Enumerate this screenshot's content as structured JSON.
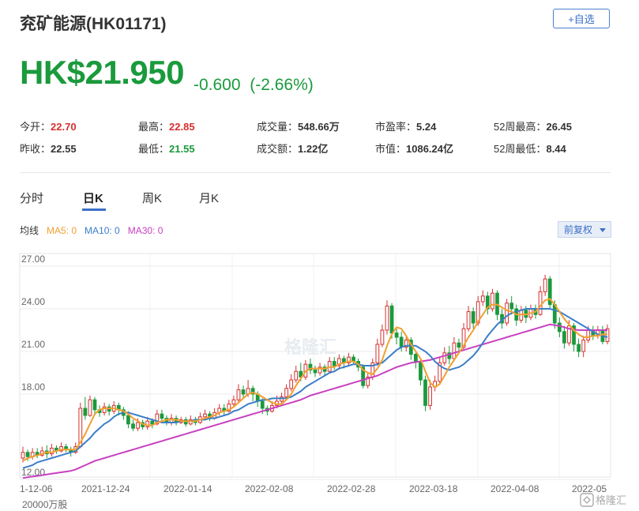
{
  "header": {
    "title": "兖矿能源(HK01171)",
    "watch_label": "+自选",
    "price": "HK$21.950",
    "change": "-0.600",
    "change_pct": "(-2.66%)"
  },
  "stats": {
    "open_label": "今开：",
    "open": "22.70",
    "high_label": "最高：",
    "high": "22.85",
    "volume_label": "成交量：",
    "volume": "548.66万",
    "pe_label": "市盈率：",
    "pe": "5.24",
    "w52_high_label": "52周最高：",
    "w52_high": "26.45",
    "prev_close_label": "昨收：",
    "prev_close": "22.55",
    "low_label": "最低：",
    "low": "21.55",
    "turnover_label": "成交额：",
    "turnover": "1.22亿",
    "mcap_label": "市值：",
    "mcap": "1086.24亿",
    "w52_low_label": "52周最低：",
    "w52_low": "8.44"
  },
  "tabs": [
    "分时",
    "日K",
    "周K",
    "月K"
  ],
  "ma_legend": {
    "label": "均线",
    "ma5": "MA5: 0",
    "ma10": "MA10: 0",
    "ma30": "MA30: 0"
  },
  "adjust_label": "前复权",
  "volume_label": "20000万股",
  "watermark": "格隆汇",
  "colors": {
    "up": "#d63030",
    "down": "#1a9a3c",
    "ma5": "#f0a030",
    "ma10": "#3a7ec8",
    "ma30": "#c840c0"
  },
  "chart_data": {
    "type": "candlestick",
    "ylim": [
      12,
      27
    ],
    "yticks": [
      "27.00",
      "24.00",
      "21.00",
      "18.00",
      "12.00"
    ],
    "xticks": [
      "1-12-06",
      "2021-12-24",
      "2022-01-14",
      "2022-02-08",
      "2022-02-28",
      "2022-03-18",
      "2022-04-08",
      "2022-05"
    ],
    "grid": true,
    "candles": [
      [
        13.5,
        13.9,
        14.3,
        13.2
      ],
      [
        13.9,
        13.6,
        14.1,
        13.3
      ],
      [
        13.6,
        13.9,
        14.2,
        13.4
      ],
      [
        13.9,
        13.7,
        14.2,
        13.5
      ],
      [
        13.7,
        14.0,
        14.3,
        13.6
      ],
      [
        14.0,
        13.8,
        14.4,
        13.5
      ],
      [
        13.8,
        14.2,
        14.5,
        13.6
      ],
      [
        14.2,
        14.0,
        14.4,
        13.8
      ],
      [
        14.0,
        14.3,
        14.6,
        13.9
      ],
      [
        14.3,
        14.1,
        14.5,
        13.9
      ],
      [
        14.1,
        13.9,
        14.3,
        13.6
      ],
      [
        13.9,
        14.3,
        14.6,
        13.8
      ],
      [
        14.3,
        17.0,
        17.4,
        14.2
      ],
      [
        17.0,
        16.5,
        17.8,
        16.2
      ],
      [
        16.5,
        17.6,
        17.9,
        16.4
      ],
      [
        17.6,
        16.9,
        17.8,
        16.5
      ],
      [
        16.9,
        16.7,
        17.2,
        16.4
      ],
      [
        16.7,
        17.1,
        17.4,
        16.5
      ],
      [
        17.1,
        16.8,
        17.3,
        16.5
      ],
      [
        16.8,
        17.2,
        17.5,
        16.6
      ],
      [
        17.2,
        16.9,
        17.4,
        16.5
      ],
      [
        16.9,
        16.5,
        17.1,
        16.2
      ],
      [
        16.5,
        15.9,
        16.8,
        15.6
      ],
      [
        15.9,
        15.6,
        16.2,
        15.4
      ],
      [
        15.6,
        16.0,
        16.3,
        15.4
      ],
      [
        16.0,
        15.7,
        16.2,
        15.5
      ],
      [
        15.7,
        16.1,
        16.4,
        15.5
      ],
      [
        16.1,
        15.9,
        16.3,
        15.6
      ],
      [
        15.9,
        16.6,
        16.9,
        15.8
      ],
      [
        16.6,
        16.3,
        16.9,
        16.0
      ],
      [
        16.3,
        16.0,
        16.5,
        15.8
      ],
      [
        16.0,
        16.3,
        16.6,
        15.8
      ],
      [
        16.3,
        16.0,
        16.5,
        15.8
      ],
      [
        16.0,
        16.2,
        16.4,
        15.9
      ],
      [
        16.2,
        15.9,
        16.4,
        15.7
      ],
      [
        15.9,
        16.2,
        16.5,
        15.8
      ],
      [
        16.2,
        16.0,
        16.4,
        15.8
      ],
      [
        16.0,
        16.4,
        16.7,
        15.9
      ],
      [
        16.4,
        16.6,
        16.9,
        16.2
      ],
      [
        16.6,
        16.3,
        16.8,
        16.1
      ],
      [
        16.3,
        16.7,
        17.0,
        16.2
      ],
      [
        16.7,
        17.0,
        17.3,
        16.5
      ],
      [
        17.0,
        16.8,
        17.3,
        16.5
      ],
      [
        16.8,
        17.3,
        17.6,
        16.7
      ],
      [
        17.3,
        17.6,
        17.9,
        17.1
      ],
      [
        17.6,
        18.3,
        18.7,
        17.4
      ],
      [
        18.3,
        18.0,
        18.6,
        17.7
      ],
      [
        18.0,
        18.4,
        19.0,
        17.8
      ],
      [
        18.4,
        18.0,
        18.6,
        17.5
      ],
      [
        18.0,
        17.5,
        18.2,
        17.1
      ],
      [
        17.5,
        17.0,
        17.7,
        16.6
      ],
      [
        17.0,
        16.8,
        17.2,
        16.5
      ],
      [
        16.8,
        17.2,
        17.5,
        16.7
      ],
      [
        17.2,
        17.5,
        17.9,
        17.0
      ],
      [
        17.5,
        17.8,
        18.1,
        17.3
      ],
      [
        17.8,
        18.4,
        18.7,
        17.6
      ],
      [
        18.4,
        19.0,
        19.4,
        18.2
      ],
      [
        19.0,
        19.6,
        20.0,
        18.8
      ],
      [
        19.6,
        19.2,
        20.2,
        18.9
      ],
      [
        19.2,
        20.1,
        20.4,
        19.0
      ],
      [
        20.1,
        19.7,
        20.5,
        19.4
      ],
      [
        19.7,
        19.5,
        20.0,
        19.2
      ],
      [
        19.5,
        19.9,
        20.2,
        19.3
      ],
      [
        19.9,
        19.6,
        20.1,
        19.3
      ],
      [
        19.6,
        20.3,
        20.6,
        19.5
      ],
      [
        20.3,
        20.0,
        20.6,
        19.7
      ],
      [
        20.0,
        20.5,
        20.8,
        19.8
      ],
      [
        20.5,
        20.2,
        20.7,
        19.8
      ],
      [
        20.2,
        20.6,
        20.9,
        20.0
      ],
      [
        20.6,
        20.3,
        20.8,
        20.1
      ],
      [
        20.3,
        19.9,
        20.5,
        19.6
      ],
      [
        19.9,
        18.6,
        20.1,
        18.4
      ],
      [
        18.6,
        19.2,
        19.5,
        18.4
      ],
      [
        19.2,
        20.2,
        20.5,
        19.0
      ],
      [
        20.2,
        21.5,
        21.9,
        20.0
      ],
      [
        21.5,
        22.5,
        22.9,
        21.3
      ],
      [
        22.5,
        24.2,
        24.6,
        22.2
      ],
      [
        24.2,
        22.3,
        24.4,
        21.9
      ],
      [
        22.3,
        22.0,
        22.6,
        21.5
      ],
      [
        22.0,
        21.3,
        22.4,
        21.0
      ],
      [
        21.3,
        21.8,
        22.1,
        21.0
      ],
      [
        21.8,
        20.8,
        22.0,
        20.4
      ],
      [
        20.8,
        20.3,
        21.0,
        19.8
      ],
      [
        20.3,
        19.0,
        20.5,
        18.6
      ],
      [
        19.0,
        17.2,
        19.3,
        16.8
      ],
      [
        17.2,
        18.5,
        19.0,
        16.9
      ],
      [
        18.5,
        18.9,
        19.3,
        18.2
      ],
      [
        18.9,
        20.2,
        20.6,
        18.7
      ],
      [
        20.2,
        20.9,
        21.3,
        20.0
      ],
      [
        20.9,
        20.5,
        21.4,
        20.1
      ],
      [
        20.5,
        21.6,
        22.0,
        20.3
      ],
      [
        21.6,
        21.3,
        21.9,
        20.9
      ],
      [
        21.3,
        22.6,
        23.0,
        21.1
      ],
      [
        22.6,
        23.8,
        24.2,
        22.4
      ],
      [
        23.8,
        23.0,
        24.1,
        22.6
      ],
      [
        23.0,
        24.5,
        24.9,
        22.8
      ],
      [
        24.5,
        24.9,
        25.3,
        24.2
      ],
      [
        24.9,
        24.0,
        25.2,
        23.6
      ],
      [
        24.0,
        25.1,
        25.4,
        23.8
      ],
      [
        25.1,
        23.6,
        25.3,
        23.2
      ],
      [
        23.6,
        23.0,
        24.0,
        22.6
      ],
      [
        23.0,
        24.4,
        24.7,
        22.8
      ],
      [
        24.4,
        24.0,
        24.9,
        23.6
      ],
      [
        24.0,
        23.2,
        24.3,
        22.8
      ],
      [
        23.2,
        23.9,
        24.2,
        23.0
      ],
      [
        23.9,
        23.4,
        24.2,
        23.0
      ],
      [
        23.4,
        24.0,
        24.3,
        23.2
      ],
      [
        24.0,
        23.6,
        24.3,
        23.3
      ],
      [
        23.6,
        25.2,
        25.6,
        23.5
      ],
      [
        25.2,
        26.1,
        26.4,
        24.9
      ],
      [
        26.1,
        24.3,
        26.3,
        24.0
      ],
      [
        24.3,
        23.0,
        24.6,
        22.6
      ],
      [
        23.0,
        22.4,
        23.4,
        22.0
      ],
      [
        22.4,
        21.6,
        22.8,
        21.2
      ],
      [
        21.6,
        22.8,
        23.2,
        21.4
      ],
      [
        22.8,
        21.5,
        23.0,
        21.0
      ],
      [
        21.5,
        21.0,
        21.9,
        20.6
      ],
      [
        21.0,
        21.8,
        22.1,
        20.6
      ],
      [
        21.8,
        22.5,
        22.8,
        21.6
      ],
      [
        22.5,
        22.1,
        22.8,
        21.8
      ],
      [
        22.1,
        22.5,
        22.8,
        21.9
      ],
      [
        22.5,
        21.7,
        22.8,
        21.5
      ],
      [
        21.7,
        22.6,
        22.9,
        21.5
      ]
    ],
    "ma5": [
      13.3,
      13.5,
      13.6,
      13.7,
      13.8,
      13.9,
      13.9,
      14.0,
      14.1,
      14.1,
      14.1,
      14.1,
      14.6,
      15.2,
      15.9,
      16.6,
      16.9,
      17.0,
      17.0,
      17.0,
      16.9,
      16.8,
      16.6,
      16.3,
      16.1,
      15.9,
      15.8,
      15.8,
      16.0,
      16.1,
      16.2,
      16.2,
      16.2,
      16.1,
      16.1,
      16.1,
      16.1,
      16.2,
      16.3,
      16.4,
      16.5,
      16.7,
      16.8,
      16.9,
      17.1,
      17.4,
      17.7,
      18.0,
      18.1,
      18.0,
      17.8,
      17.6,
      17.4,
      17.3,
      17.3,
      17.6,
      18.0,
      18.6,
      19.1,
      19.6,
      19.8,
      19.8,
      19.8,
      19.8,
      19.9,
      19.9,
      20.1,
      20.2,
      20.3,
      20.3,
      20.1,
      19.7,
      19.5,
      19.4,
      19.8,
      20.4,
      21.4,
      22.2,
      22.7,
      22.6,
      22.1,
      21.5,
      21.0,
      20.5,
      19.6,
      18.8,
      18.5,
      18.7,
      19.3,
      19.9,
      20.4,
      20.9,
      21.4,
      22.0,
      22.5,
      23.1,
      23.6,
      24.1,
      24.3,
      24.3,
      24.1,
      23.9,
      23.8,
      23.6,
      23.6,
      23.6,
      23.7,
      23.8,
      24.2,
      24.6,
      24.7,
      24.3,
      23.8,
      23.3,
      22.9,
      22.5,
      22.2,
      22.0,
      22.0,
      22.1,
      22.1,
      22.2,
      22.2
    ],
    "ma10": [
      12.8,
      12.9,
      13.0,
      13.2,
      13.3,
      13.4,
      13.5,
      13.6,
      13.7,
      13.8,
      13.9,
      14.0,
      14.3,
      14.6,
      14.9,
      15.3,
      15.6,
      15.9,
      16.1,
      16.4,
      16.6,
      16.7,
      16.7,
      16.6,
      16.5,
      16.4,
      16.3,
      16.2,
      16.1,
      16.0,
      16.0,
      16.0,
      16.0,
      16.1,
      16.1,
      16.1,
      16.2,
      16.2,
      16.2,
      16.3,
      16.3,
      16.4,
      16.5,
      16.6,
      16.8,
      16.9,
      17.1,
      17.3,
      17.4,
      17.5,
      17.6,
      17.6,
      17.7,
      17.7,
      17.7,
      17.7,
      17.8,
      18.0,
      18.2,
      18.5,
      18.7,
      18.9,
      19.1,
      19.3,
      19.5,
      19.6,
      19.8,
      19.9,
      20.0,
      20.1,
      20.1,
      20.0,
      20.0,
      20.0,
      20.1,
      20.2,
      20.5,
      20.8,
      21.1,
      21.3,
      21.4,
      21.4,
      21.4,
      21.2,
      21.0,
      20.7,
      20.3,
      20.0,
      19.8,
      19.7,
      19.8,
      19.9,
      20.1,
      20.4,
      20.7,
      21.1,
      21.6,
      22.1,
      22.5,
      22.9,
      23.2,
      23.5,
      23.7,
      23.8,
      23.9,
      24.0,
      24.0,
      24.0,
      24.0,
      24.0,
      24.0,
      23.9,
      23.8,
      23.6,
      23.4,
      23.2,
      23.0,
      22.8,
      22.6,
      22.4,
      22.2,
      22.1,
      22.0
    ],
    "ma30": [
      12.1,
      12.15,
      12.2,
      12.25,
      12.3,
      12.35,
      12.4,
      12.45,
      12.5,
      12.55,
      12.6,
      12.7,
      12.85,
      13.0,
      13.15,
      13.3,
      13.4,
      13.5,
      13.6,
      13.7,
      13.8,
      13.9,
      14.0,
      14.1,
      14.2,
      14.3,
      14.4,
      14.5,
      14.6,
      14.7,
      14.8,
      14.9,
      15.0,
      15.1,
      15.2,
      15.3,
      15.4,
      15.5,
      15.6,
      15.7,
      15.8,
      15.9,
      16.0,
      16.1,
      16.2,
      16.3,
      16.4,
      16.5,
      16.6,
      16.7,
      16.8,
      16.9,
      17.0,
      17.1,
      17.2,
      17.3,
      17.4,
      17.5,
      17.6,
      17.75,
      17.9,
      18.0,
      18.1,
      18.2,
      18.3,
      18.4,
      18.5,
      18.6,
      18.7,
      18.8,
      18.9,
      19.0,
      19.1,
      19.2,
      19.3,
      19.45,
      19.6,
      19.75,
      19.9,
      20.0,
      20.1,
      20.2,
      20.25,
      20.3,
      20.35,
      20.4,
      20.5,
      20.6,
      20.7,
      20.8,
      20.9,
      21.0,
      21.1,
      21.2,
      21.3,
      21.4,
      21.5,
      21.6,
      21.7,
      21.8,
      21.9,
      22.0,
      22.1,
      22.2,
      22.3,
      22.4,
      22.5,
      22.6,
      22.7,
      22.8,
      22.9,
      22.85,
      22.8,
      22.7,
      22.6,
      22.55,
      22.5,
      22.5,
      22.5,
      22.5,
      22.5,
      22.5,
      22.5
    ]
  }
}
